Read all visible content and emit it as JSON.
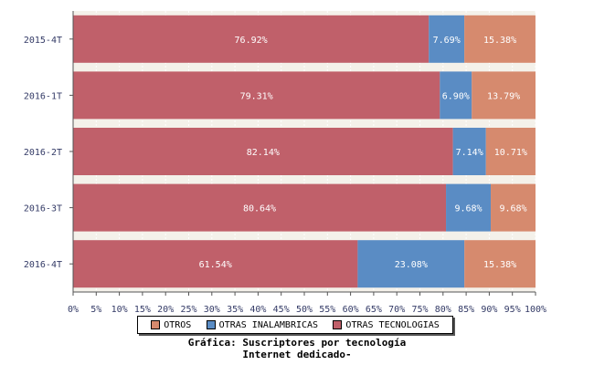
{
  "chart_data": {
    "type": "bar",
    "orientation": "horizontal",
    "stacked": "percent",
    "categories": [
      "2015-4T",
      "2016-1T",
      "2016-2T",
      "2016-3T",
      "2016-4T"
    ],
    "series": [
      {
        "name": "OTRAS TECNOLOGIAS",
        "color": "#c0606a",
        "values": [
          76.92,
          79.31,
          82.14,
          80.64,
          61.54
        ],
        "labels": [
          "76.92%",
          "79.31%",
          "82.14%",
          "80.64%",
          "61.54%"
        ]
      },
      {
        "name": "OTRAS INALAMBRICAS",
        "color": "#5a8cc4",
        "values": [
          7.69,
          6.9,
          7.14,
          9.68,
          23.08
        ],
        "labels": [
          "7.69%",
          "6.90%",
          "7.14%",
          "9.68%",
          "23.08%"
        ]
      },
      {
        "name": "OTROS",
        "color": "#d68a6e",
        "values": [
          15.38,
          13.79,
          10.71,
          9.68,
          15.38
        ],
        "labels": [
          "15.38%",
          "13.79%",
          "10.71%",
          "9.68%",
          "15.38%"
        ]
      }
    ],
    "x_ticks": [
      "0%",
      "5%",
      "10%",
      "15%",
      "20%",
      "25%",
      "30%",
      "35%",
      "40%",
      "45%",
      "50%",
      "55%",
      "60%",
      "65%",
      "70%",
      "75%",
      "80%",
      "85%",
      "90%",
      "95%",
      "100%"
    ],
    "xlim": [
      0,
      100
    ],
    "legend": {
      "placement": "bottom",
      "items": [
        {
          "label": "OTROS",
          "color": "#d68a6e"
        },
        {
          "label": "OTRAS INALAMBRICAS",
          "color": "#5a8cc4"
        },
        {
          "label": "OTRAS TECNOLOGIAS",
          "color": "#c0606a"
        }
      ]
    },
    "title_line1": "Gráfica: Suscriptores por tecnología",
    "title_line2": "Internet dedicado-"
  }
}
